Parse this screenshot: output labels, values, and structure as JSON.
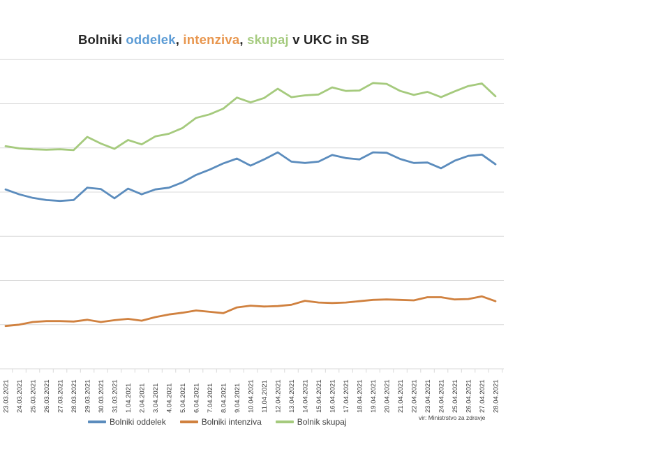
{
  "title": {
    "segments": [
      {
        "text": "Bolniki ",
        "color": "#262626"
      },
      {
        "text": "oddelek",
        "color": "#5b9bd5"
      },
      {
        "text": ", ",
        "color": "#262626"
      },
      {
        "text": "intenziva",
        "color": "#e8964e"
      },
      {
        "text": ", ",
        "color": "#262626"
      },
      {
        "text": "skupaj",
        "color": "#a6cb80"
      },
      {
        "text": " v UKC in SB",
        "color": "#262626"
      }
    ]
  },
  "legend": {
    "items": [
      {
        "label": "Bolniki oddelek",
        "color": "#5b8cbd"
      },
      {
        "label": "Bolniki intenziva",
        "color": "#d0813f"
      },
      {
        "label": "Bolnik skupaj",
        "color": "#a5ca7d"
      }
    ]
  },
  "source_note": "vir: Ministrstvo za zdravje",
  "chart_data": {
    "type": "line",
    "title": "Bolniki oddelek, intenziva, skupaj v UKC in SB",
    "xlabel": "",
    "ylabel": "",
    "ylim": [
      0,
      700
    ],
    "grid_step": 100,
    "grid": "horizontal-only",
    "y_axis_labels_visible": false,
    "legend_position": "bottom",
    "colors": {
      "gridline": "#d9d9d9",
      "axis": "#d9d9d9",
      "tick_label": "#404040"
    },
    "categories": [
      "23.03.2021",
      "24.03.2021",
      "25.03.2021",
      "26.03.2021",
      "27.03.2021",
      "28.03.2021",
      "29.03.2021",
      "30.03.2021",
      "31.03.2021",
      "1.04.2021",
      "2.04.2021",
      "3.04.2021",
      "4.04.2021",
      "5.04.2021",
      "6.04.2021",
      "7.04.2021",
      "8.04.2021",
      "9.04.2021",
      "10.04.2021",
      "11.04.2021",
      "12.04.2021",
      "13.04.2021",
      "14.04.2021",
      "15.04.2021",
      "16.04.2021",
      "17.04.2021",
      "18.04.2021",
      "19.04.2021",
      "20.04.2021",
      "21.04.2021",
      "22.04.2021",
      "23.04.2021",
      "24.04.2021",
      "25.04.2021",
      "26.04.2021",
      "27.04.2021",
      "28.04.2021"
    ],
    "series": [
      {
        "name": "Bolniki oddelek",
        "color": "#5b8cbd",
        "values": [
          406,
          395,
          387,
          382,
          380,
          382,
          410,
          407,
          386,
          408,
          395,
          406,
          410,
          422,
          439,
          451,
          465,
          476,
          460,
          474,
          490,
          469,
          466,
          469,
          484,
          477,
          474,
          490,
          489,
          475,
          466,
          467,
          454,
          471,
          482,
          485,
          463
        ]
      },
      {
        "name": "Bolniki intenziva",
        "color": "#d0813f",
        "values": [
          97,
          100,
          106,
          108,
          108,
          107,
          111,
          106,
          110,
          113,
          109,
          117,
          123,
          127,
          132,
          129,
          126,
          139,
          143,
          141,
          142,
          145,
          154,
          150,
          149,
          150,
          153,
          156,
          157,
          156,
          155,
          162,
          162,
          157,
          158,
          164,
          153
        ]
      },
      {
        "name": "Bolnik skupaj",
        "color": "#a5ca7d",
        "values": [
          504,
          499,
          497,
          496,
          497,
          495,
          525,
          510,
          498,
          518,
          508,
          526,
          532,
          545,
          568,
          576,
          589,
          614,
          603,
          613,
          634,
          615,
          619,
          621,
          637,
          629,
          630,
          647,
          645,
          629,
          620,
          627,
          615,
          628,
          640,
          646,
          617
        ]
      }
    ]
  }
}
